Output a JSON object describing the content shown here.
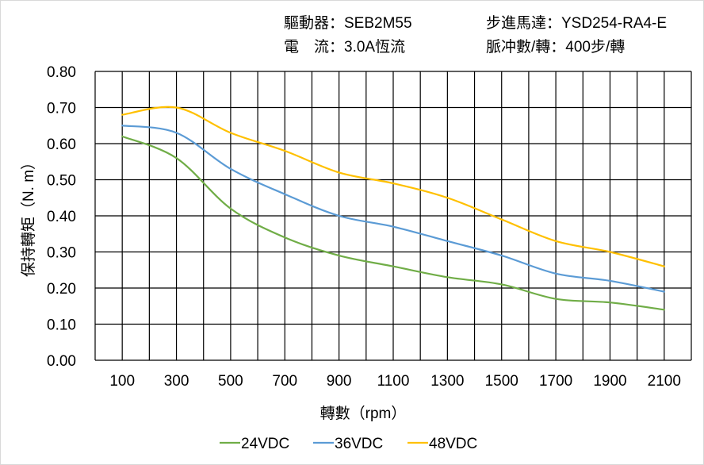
{
  "header": {
    "driver": "驅動器：SEB2M55",
    "motor": "步進馬達：YSD254-RA4-E",
    "current": "電　流：3.0A恆流",
    "pulses": "脈冲數/轉：400步/轉"
  },
  "chart_data": {
    "type": "line",
    "title": "",
    "xlabel": "轉數（rpm）",
    "ylabel": "保持轉矩（N. m）",
    "x": [
      100,
      300,
      500,
      700,
      900,
      1100,
      1300,
      1500,
      1700,
      1900,
      2100
    ],
    "x_tick_labels": [
      "100",
      "300",
      "500",
      "700",
      "900",
      "1100",
      "1300",
      "1500",
      "1700",
      "1900",
      "2100"
    ],
    "xlim": [
      0,
      2200
    ],
    "ylim": [
      0,
      0.8
    ],
    "y_tick_labels": [
      "0.00",
      "0.10",
      "0.20",
      "0.30",
      "0.40",
      "0.50",
      "0.60",
      "0.70",
      "0.80"
    ],
    "grid": true,
    "smooth": true,
    "legend_position": "bottom",
    "series": [
      {
        "name": "24VDC",
        "color": "#70ad47",
        "values": [
          0.62,
          0.56,
          0.42,
          0.34,
          0.29,
          0.26,
          0.23,
          0.21,
          0.17,
          0.16,
          0.14
        ]
      },
      {
        "name": "36VDC",
        "color": "#5b9bd5",
        "values": [
          0.65,
          0.63,
          0.53,
          0.46,
          0.4,
          0.37,
          0.33,
          0.29,
          0.24,
          0.22,
          0.19
        ]
      },
      {
        "name": "48VDC",
        "color": "#ffc000",
        "values": [
          0.68,
          0.7,
          0.63,
          0.58,
          0.52,
          0.49,
          0.45,
          0.39,
          0.33,
          0.3,
          0.26
        ]
      }
    ]
  }
}
